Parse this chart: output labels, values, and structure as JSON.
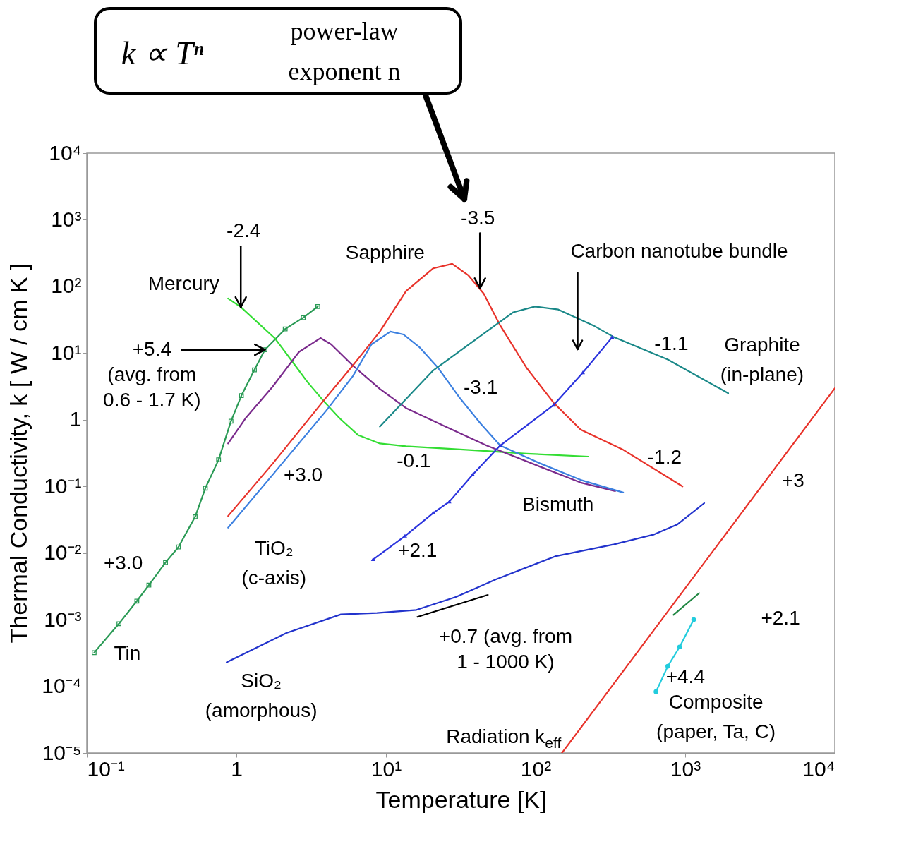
{
  "chart_data": {
    "type": "line",
    "xlabel": "Temperature [K]",
    "ylabel": "Thermal Conductivity, k [ W / cm K ]",
    "log": "xy",
    "grid": false,
    "xlim": [
      0.1,
      10000
    ],
    "ylim": [
      1e-05,
      10000
    ],
    "xticks": [
      {
        "value": 0.1,
        "label": "10⁻¹"
      },
      1,
      {
        "value": 10,
        "label": "10¹"
      },
      {
        "value": 100,
        "label": "10²"
      },
      {
        "value": 1000,
        "label": "10³"
      },
      {
        "value": 10000,
        "label": "10⁴"
      }
    ],
    "yticks": [
      {
        "value": 1e-05,
        "label": "10⁻⁵"
      },
      {
        "value": 0.0001,
        "label": "10⁻⁴"
      },
      {
        "value": 0.001,
        "label": "10⁻³"
      },
      {
        "value": 0.01,
        "label": "10⁻²"
      },
      {
        "value": 0.1,
        "label": "10⁻¹"
      },
      1,
      {
        "value": 10,
        "label": "10¹"
      },
      {
        "value": 100,
        "label": "10²"
      },
      {
        "value": 1000,
        "label": "10³"
      },
      {
        "value": 10000,
        "label": "10⁴"
      }
    ],
    "series": [
      {
        "name": "Tin",
        "color": "#2a9a55",
        "marker": "square",
        "x": [
          0.112,
          0.164,
          0.216,
          0.26,
          0.336,
          0.41,
          0.53,
          0.62,
          0.76,
          0.92,
          1.08,
          1.32,
          1.55,
          2.12,
          2.8,
          3.5
        ],
        "values": [
          0.00032,
          0.00087,
          0.0019,
          0.0033,
          0.0072,
          0.0123,
          0.035,
          0.094,
          0.25,
          0.95,
          2.3,
          5.6,
          11.2,
          23,
          34,
          50
        ]
      },
      {
        "name": "Mercury",
        "color": "#33dd33",
        "x": [
          0.88,
          1.07,
          1.82,
          2.33,
          2.98,
          3.8,
          4.9,
          6.5,
          9.1,
          13.6,
          25,
          47,
          87,
          225
        ],
        "values": [
          66,
          49,
          16.4,
          7.8,
          3.7,
          1.95,
          1.05,
          0.59,
          0.44,
          0.4,
          0.37,
          0.34,
          0.31,
          0.28
        ]
      },
      {
        "name": "Bismuth",
        "color": "#7a2a8c",
        "x": [
          0.88,
          1.15,
          1.75,
          2.62,
          3.65,
          4.3,
          6.0,
          9.1,
          13.6,
          25,
          47,
          108,
          200,
          340
        ],
        "values": [
          0.44,
          1.05,
          3.15,
          10.4,
          16.8,
          13.5,
          6.5,
          2.9,
          1.5,
          0.79,
          0.41,
          0.196,
          0.114,
          0.085
        ]
      },
      {
        "name": "Sapphire",
        "color": "#e8322a",
        "x": [
          0.88,
          1.75,
          3.98,
          6.0,
          9.1,
          13.6,
          20.7,
          27.7,
          35.4,
          45,
          58,
          87,
          132,
          200,
          380,
          960
        ],
        "values": [
          0.036,
          0.22,
          2.15,
          6.5,
          21,
          85,
          187,
          218,
          148,
          78,
          26,
          6.0,
          1.8,
          0.71,
          0.36,
          0.1
        ]
      },
      {
        "name": "TiO₂ (c-axis)",
        "color": "#3c80e0",
        "x": [
          0.88,
          1.75,
          3.98,
          6.0,
          8.0,
          10.7,
          13.1,
          16.7,
          22.3,
          31,
          43,
          58,
          108,
          200,
          385
        ],
        "values": [
          0.024,
          0.15,
          1.36,
          4.5,
          13.5,
          21,
          19,
          12.3,
          6.0,
          2.15,
          0.87,
          0.41,
          0.22,
          0.125,
          0.081
        ]
      },
      {
        "name": "Graphite (in-plane)",
        "color": "#1a8888",
        "x": [
          9.1,
          20.7,
          47,
          71,
          99,
          142,
          243,
          330,
          765,
          1940
        ],
        "values": [
          0.79,
          5.5,
          21,
          41,
          50,
          45,
          26,
          17.6,
          8.0,
          2.5
        ]
      },
      {
        "name": "Carbon nanotube bundle",
        "color": "#2a33dd",
        "marker": "triangle",
        "x": [
          8.2,
          13.4,
          20.7,
          26.5,
          38,
          58,
          132,
          207,
          325
        ],
        "values": [
          0.008,
          0.018,
          0.04,
          0.059,
          0.15,
          0.41,
          1.66,
          5.1,
          17.3
        ]
      },
      {
        "name": "SiO₂ (amorphous)",
        "color": "#2233cc",
        "x": [
          0.86,
          2.16,
          5.0,
          8.7,
          16,
          29.5,
          54,
          135,
          335,
          620,
          890,
          1340
        ],
        "values": [
          0.00023,
          0.00063,
          0.0012,
          0.00126,
          0.0014,
          0.0022,
          0.004,
          0.0089,
          0.0135,
          0.019,
          0.027,
          0.056
        ]
      },
      {
        "name": "Radiation k$_{eff}$",
        "color": "#e8322a",
        "x": [
          150,
          10000
        ],
        "values": [
          1e-05,
          2.96
        ]
      },
      {
        "color": "#228844",
        "x": [
          835,
          1240
        ],
        "values": [
          0.00118,
          0.0025
        ]
      },
      {
        "name": "Composite (paper, Ta, C)",
        "color": "#22ccdd",
        "marker": "circle",
        "x": [
          638,
          765,
          918,
          1140
        ],
        "values": [
          8.3e-05,
          0.0002,
          0.00039,
          0.001
        ]
      },
      {
        "color": "#000000",
        "x": [
          16.2,
          48
        ],
        "values": [
          0.0011,
          0.00235
        ]
      }
    ],
    "annotations": [
      {
        "text": "-2.4",
        "x": 1.07,
        "y": 49
      },
      {
        "text": "+5.4 (avg. from 0.6 - 1.7 K)",
        "x": 1.55,
        "y": 11.2
      },
      {
        "text": "+3.0",
        "x": 0.336,
        "y": 0.0072
      },
      {
        "text": "+3.0",
        "x": 1.75,
        "y": 0.15
      },
      {
        "text": "-0.1",
        "x": 13.6,
        "y": 0.4
      },
      {
        "text": "-3.1",
        "x": 31,
        "y": 2.15
      },
      {
        "text": "-3.5",
        "x": 42.5,
        "y": 94
      },
      {
        "text": "-1.2",
        "x": 380,
        "y": 0.36
      },
      {
        "text": "-1.1",
        "x": 765,
        "y": 8.0
      },
      {
        "text": "+2.1",
        "x": 8.2,
        "y": 0.008
      },
      {
        "text": "+0.7 (avg. from 1 - 1000 K)",
        "x": 16.2,
        "y": 0.0011
      },
      {
        "text": "+3",
        "x": 3600,
        "y": 0.12
      },
      "+2.1",
      {
        "text": "+4.4",
        "x": 765,
        "y": 0.0002
      },
      "k ∝ Tⁿ power-law exponent n"
    ]
  }
}
